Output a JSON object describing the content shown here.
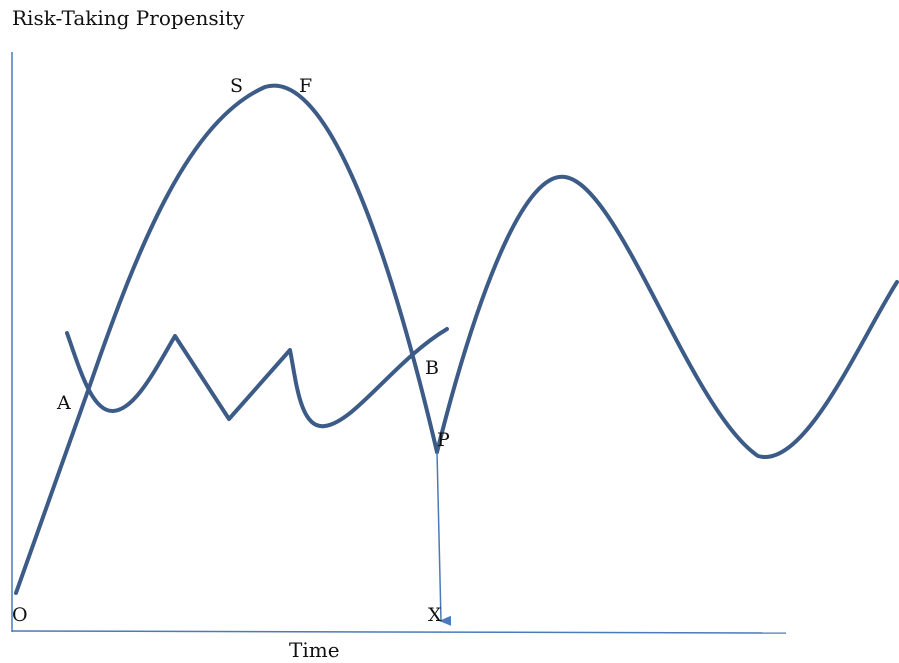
{
  "diagram": {
    "title": "Risk-Taking Propensity",
    "x_axis_label": "Time",
    "point_labels": {
      "S": "S",
      "F": "F",
      "A": "A",
      "B": "B",
      "P": "P",
      "O": "O",
      "X": "X"
    },
    "colors": {
      "curve": "#3c5b87",
      "axis": "#4a7ab8",
      "text": "#111111"
    }
  }
}
